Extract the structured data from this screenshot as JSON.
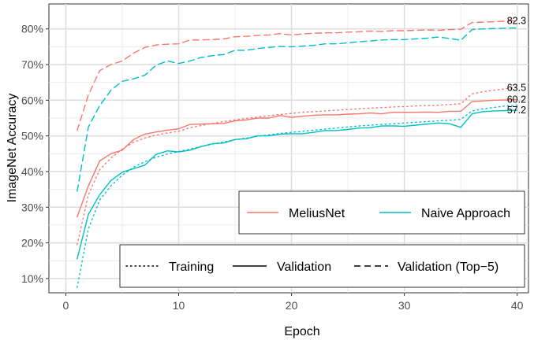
{
  "chart_data": {
    "type": "line",
    "title": "",
    "xlabel": "Epoch",
    "ylabel": "ImageNet Accuracy",
    "xlim": [
      -1.5,
      41
    ],
    "ylim": [
      6,
      87
    ],
    "xticks": [
      0,
      10,
      20,
      30,
      40
    ],
    "xtick_labels": [
      "0",
      "10",
      "20",
      "30",
      "40"
    ],
    "yticks": [
      10,
      20,
      30,
      40,
      50,
      60,
      70,
      80
    ],
    "ytick_labels": [
      "10%",
      "20%",
      "30%",
      "40%",
      "50%",
      "60%",
      "70%",
      "80%"
    ],
    "grid": true,
    "x": [
      1,
      2,
      3,
      4,
      5,
      6,
      7,
      8,
      9,
      10,
      11,
      12,
      13,
      14,
      15,
      16,
      17,
      18,
      19,
      20,
      21,
      22,
      23,
      24,
      25,
      26,
      27,
      28,
      29,
      30,
      31,
      32,
      33,
      34,
      35,
      36,
      37,
      38,
      39,
      40
    ],
    "series": [
      {
        "name": "MeliusNet",
        "metric": "Training",
        "color": "#F8766D",
        "dash": "dotted",
        "values": [
          19.5,
          33.5,
          40.5,
          43.8,
          46.3,
          48.2,
          49.4,
          50.2,
          50.8,
          51.3,
          52.3,
          52.9,
          53.5,
          54.0,
          54.5,
          54.9,
          55.3,
          55.7,
          56.0,
          56.3,
          56.6,
          56.8,
          57.0,
          57.2,
          57.4,
          57.6,
          57.8,
          57.9,
          58.1,
          58.2,
          58.4,
          58.5,
          58.6,
          58.8,
          59.0,
          61.8,
          62.4,
          62.8,
          63.2,
          63.5
        ]
      },
      {
        "name": "MeliusNet",
        "metric": "Validation",
        "color": "#F8766D",
        "dash": "solid",
        "values": [
          27.3,
          36.0,
          43.0,
          45.0,
          46.0,
          49.0,
          50.5,
          51.1,
          51.6,
          52.0,
          53.2,
          53.3,
          53.4,
          53.5,
          54.2,
          54.5,
          55.0,
          55.0,
          55.7,
          55.2,
          55.5,
          55.8,
          55.9,
          55.9,
          56.1,
          56.2,
          56.4,
          56.2,
          56.6,
          56.6,
          56.6,
          56.7,
          56.6,
          56.9,
          56.9,
          59.6,
          59.8,
          60.0,
          60.1,
          60.2
        ]
      },
      {
        "name": "MeliusNet",
        "metric": "Validation (Top-5)",
        "color": "#F8766D",
        "dash": "dashed",
        "values": [
          51.5,
          61.5,
          68.3,
          70.0,
          71.0,
          73.2,
          74.8,
          75.5,
          75.7,
          75.8,
          76.9,
          76.9,
          77.0,
          77.2,
          77.8,
          77.9,
          78.2,
          78.3,
          78.7,
          78.3,
          78.6,
          78.8,
          78.9,
          78.9,
          79.1,
          79.2,
          79.4,
          79.3,
          79.5,
          79.5,
          79.6,
          79.7,
          79.6,
          79.8,
          79.9,
          81.8,
          81.9,
          82.0,
          82.2,
          82.3
        ]
      },
      {
        "name": "Naive Approach",
        "metric": "Training",
        "color": "#00BFC4",
        "dash": "dotted",
        "values": [
          7.5,
          24.0,
          32.0,
          36.0,
          39.0,
          41.2,
          42.8,
          44.0,
          44.9,
          45.6,
          46.3,
          47.0,
          47.7,
          48.3,
          48.9,
          49.4,
          49.9,
          50.3,
          50.7,
          51.0,
          51.3,
          51.6,
          51.9,
          52.2,
          52.5,
          52.8,
          53.0,
          53.2,
          53.4,
          53.6,
          53.8,
          54.0,
          54.2,
          54.4,
          54.6,
          57.0,
          57.6,
          58.0,
          58.4,
          58.6
        ]
      },
      {
        "name": "Naive Approach",
        "metric": "Validation",
        "color": "#00BFC4",
        "dash": "solid",
        "values": [
          15.5,
          28.0,
          33.5,
          37.5,
          39.8,
          40.8,
          41.8,
          44.8,
          45.8,
          45.5,
          46.0,
          47.0,
          47.8,
          48.0,
          49.0,
          49.2,
          50.0,
          50.0,
          50.5,
          50.6,
          50.6,
          51.0,
          51.5,
          51.5,
          51.8,
          52.2,
          52.3,
          52.8,
          52.8,
          52.7,
          53.0,
          53.3,
          53.6,
          53.4,
          52.4,
          56.2,
          56.8,
          57.0,
          57.1,
          57.2
        ]
      },
      {
        "name": "Naive Approach",
        "metric": "Validation (Top-5)",
        "color": "#00BFC4",
        "dash": "dashed",
        "values": [
          34.5,
          52.5,
          58.5,
          62.8,
          65.3,
          66.0,
          67.0,
          69.8,
          71.0,
          70.3,
          71.0,
          72.0,
          72.5,
          72.8,
          74.0,
          74.0,
          74.5,
          74.8,
          75.1,
          75.0,
          75.2,
          75.4,
          75.8,
          75.8,
          76.1,
          76.4,
          76.6,
          76.9,
          77.0,
          77.0,
          77.2,
          77.4,
          77.7,
          77.3,
          76.8,
          79.8,
          80.0,
          80.1,
          80.2,
          80.3
        ]
      }
    ],
    "end_labels": [
      {
        "text": "82.3",
        "x": 40,
        "y": 82.3
      },
      {
        "text": "63.5",
        "x": 40,
        "y": 63.5
      },
      {
        "text": "60.2",
        "x": 40,
        "y": 60.2
      },
      {
        "text": "57.2",
        "x": 40,
        "y": 57.2
      }
    ],
    "legend_color": {
      "placement": "bottom-right",
      "entries": [
        {
          "label": "MeliusNet",
          "color": "#F8766D"
        },
        {
          "label": "Naive Approach",
          "color": "#00BFC4"
        }
      ]
    },
    "legend_linetype": {
      "placement": "bottom-right",
      "entries": [
        {
          "label": "Training",
          "dash": "dotted"
        },
        {
          "label": "Validation",
          "dash": "solid"
        },
        {
          "label": "Validation (Top−5)",
          "dash": "dashed"
        }
      ]
    }
  }
}
